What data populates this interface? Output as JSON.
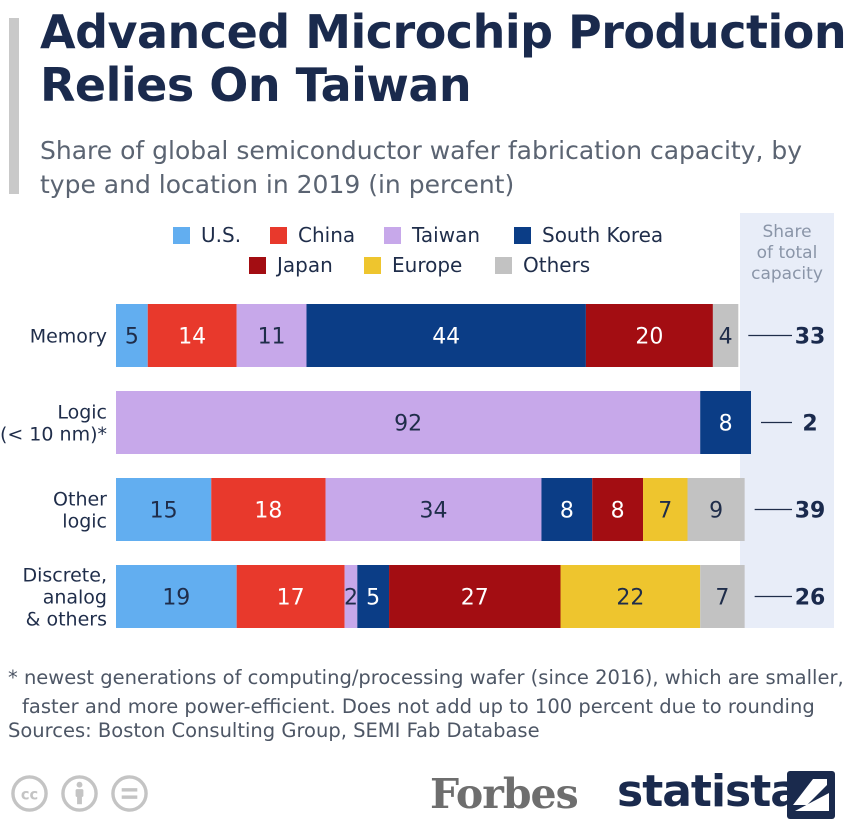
{
  "title": "Advanced Microchip Production Relies On Taiwan",
  "subtitle": "Share of global semiconductor wafer fabrication capacity, by type and location in 2019 (in percent)",
  "colors": {
    "us": "#62aef0",
    "china": "#e8392c",
    "taiwan": "#c7a8ea",
    "south_korea": "#0b3d86",
    "japan": "#a30d12",
    "europe": "#eec52e",
    "others": "#c2c2c2",
    "capacity_bg": "#e8edf8"
  },
  "capacity_header": [
    "Share",
    "of total",
    "capacity"
  ],
  "chart_data": {
    "type": "bar",
    "orientation": "horizontal",
    "stacked": true,
    "title": "Advanced Microchip Production Relies On Taiwan",
    "legend_position": "top",
    "legend": [
      "U.S.",
      "China",
      "Taiwan",
      "South Korea",
      "Japan",
      "Europe",
      "Others"
    ],
    "categories": [
      {
        "label_lines": [
          "Memory"
        ],
        "values": [
          5,
          14,
          11,
          44,
          20,
          0,
          4
        ],
        "capacity_share": 33
      },
      {
        "label_lines": [
          "Logic",
          "(< 10 nm)*"
        ],
        "values": [
          0,
          0,
          92,
          8,
          0,
          0,
          0
        ],
        "capacity_share": 2
      },
      {
        "label_lines": [
          "Other",
          "logic"
        ],
        "values": [
          15,
          18,
          34,
          8,
          8,
          7,
          9
        ],
        "capacity_share": 39
      },
      {
        "label_lines": [
          "Discrete,",
          "analog",
          "& others"
        ],
        "values": [
          19,
          17,
          2,
          5,
          27,
          22,
          7
        ],
        "capacity_share": 26
      }
    ]
  },
  "footnote": {
    "line1": "* newest generations of computing/processing wafer (since 2016), which are smaller,",
    "line2": "faster and more power-efficient. Does not add up to 100 percent due to rounding"
  },
  "sources": "Sources: Boston Consulting Group, SEMI Fab Database",
  "brand": {
    "forbes": "Forbes",
    "statista": "statista"
  }
}
